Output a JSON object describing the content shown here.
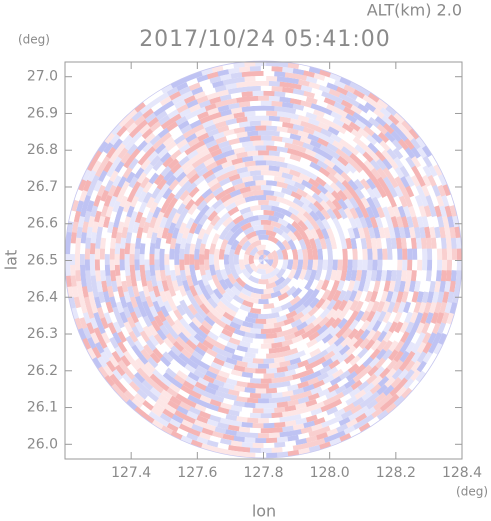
{
  "chart_data": {
    "type": "radar-ppi",
    "title": "2017/10/24 05:41:00",
    "subtitle": "ALT(km) 2.0",
    "x_label": "lon",
    "x_unit": "(deg)",
    "y_label": "lat",
    "y_unit": "(deg)",
    "xlim": [
      127.2,
      128.4
    ],
    "xticks": [
      127.4,
      127.6,
      127.8,
      {
        "value": 128.0,
        "label": "128.0"
      },
      128.2,
      128.4
    ],
    "ylim": [
      25.96,
      27.04
    ],
    "yticks": [
      {
        "value": 26.0,
        "label": "26.0"
      },
      26.1,
      26.2,
      26.3,
      26.4,
      26.5,
      26.6,
      26.7,
      26.8,
      26.9,
      {
        "value": 27.0,
        "label": "27.0"
      }
    ]
  }
}
